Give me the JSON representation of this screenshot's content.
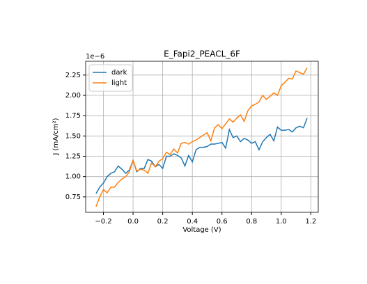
{
  "chart_data": {
    "type": "line",
    "title": "E_Fapi2_PEACL_6F",
    "xlabel": "Voltage (V)",
    "ylabel": "J (mA/cm²)",
    "y_offset_label": "1e−6",
    "x": [
      -0.25,
      -0.225,
      -0.2,
      -0.175,
      -0.15,
      -0.125,
      -0.1,
      -0.075,
      -0.05,
      -0.025,
      0,
      0.025,
      0.05,
      0.075,
      0.1,
      0.125,
      0.15,
      0.175,
      0.2,
      0.225,
      0.25,
      0.275,
      0.3,
      0.325,
      0.35,
      0.375,
      0.4,
      0.425,
      0.45,
      0.475,
      0.5,
      0.525,
      0.55,
      0.575,
      0.6,
      0.625,
      0.65,
      0.675,
      0.7,
      0.725,
      0.75,
      0.775,
      0.8,
      0.825,
      0.85,
      0.875,
      0.9,
      0.925,
      0.95,
      0.975,
      1,
      1.025,
      1.05,
      1.075,
      1.1,
      1.125,
      1.15,
      1.175
    ],
    "series": [
      {
        "name": "dark",
        "color": "#1f77b4",
        "values": [
          0.79,
          0.87,
          0.92,
          1.0,
          1.04,
          1.06,
          1.13,
          1.09,
          1.04,
          1.08,
          1.2,
          1.06,
          1.1,
          1.1,
          1.21,
          1.19,
          1.12,
          1.15,
          1.1,
          1.25,
          1.25,
          1.28,
          1.26,
          1.23,
          1.13,
          1.26,
          1.18,
          1.33,
          1.36,
          1.36,
          1.37,
          1.4,
          1.4,
          1.41,
          1.42,
          1.35,
          1.58,
          1.48,
          1.5,
          1.43,
          1.47,
          1.45,
          1.41,
          1.43,
          1.33,
          1.43,
          1.48,
          1.52,
          1.44,
          1.61,
          1.57,
          1.57,
          1.58,
          1.55,
          1.6,
          1.62,
          1.6,
          1.72
        ]
      },
      {
        "name": "light",
        "color": "#ff7f0e",
        "values": [
          0.63,
          0.75,
          0.84,
          0.8,
          0.87,
          0.87,
          0.93,
          0.97,
          1.0,
          1.06,
          1.2,
          1.07,
          1.09,
          1.08,
          1.04,
          1.17,
          1.12,
          1.19,
          1.22,
          1.3,
          1.27,
          1.34,
          1.29,
          1.41,
          1.42,
          1.4,
          1.43,
          1.45,
          1.48,
          1.51,
          1.54,
          1.44,
          1.6,
          1.64,
          1.59,
          1.65,
          1.71,
          1.67,
          1.72,
          1.76,
          1.68,
          1.81,
          1.87,
          1.89,
          1.92,
          2.0,
          1.95,
          1.99,
          2.03,
          2.0,
          2.12,
          2.16,
          2.21,
          2.2,
          2.3,
          2.28,
          2.26,
          2.34
        ]
      }
    ],
    "xlim": [
      -0.32,
      1.25
    ],
    "ylim": [
      0.56,
      2.42
    ],
    "xticks": [
      {
        "value": -0.2,
        "label": "−0.2"
      },
      {
        "value": 0,
        "label": "0.0"
      },
      {
        "value": 0.2,
        "label": "0.2"
      },
      {
        "value": 0.4,
        "label": "0.4"
      },
      {
        "value": 0.6,
        "label": "0.6"
      },
      {
        "value": 0.8,
        "label": "0.8"
      },
      {
        "value": 1,
        "label": "1.0"
      },
      {
        "value": 1.2,
        "label": "1.2"
      }
    ],
    "yticks": [
      {
        "value": 0.75,
        "label": "0.75"
      },
      {
        "value": 1,
        "label": "1.00"
      },
      {
        "value": 1.25,
        "label": "1.25"
      },
      {
        "value": 1.5,
        "label": "1.50"
      },
      {
        "value": 1.75,
        "label": "1.75"
      },
      {
        "value": 2,
        "label": "2.00"
      },
      {
        "value": 2.25,
        "label": "2.25"
      }
    ],
    "grid": true,
    "legend": "upper left"
  }
}
